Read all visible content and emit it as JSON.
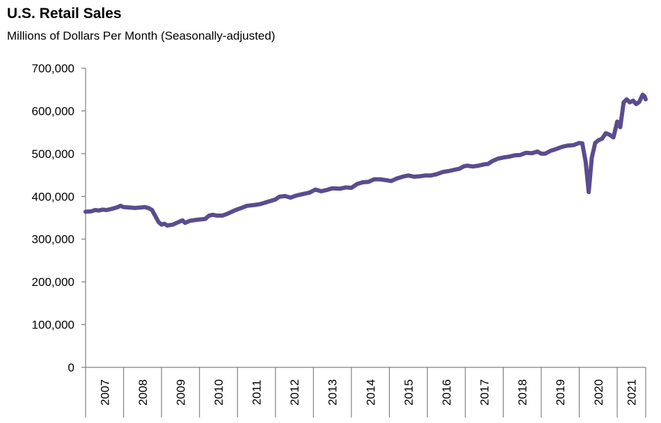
{
  "chart_data": {
    "type": "line",
    "title": "U.S. Retail Sales",
    "subtitle": "Millions of Dollars Per Month (Seasonally-adjusted)",
    "xlabel": "",
    "ylabel": "",
    "ylim": [
      0,
      700000
    ],
    "yticks": [
      0,
      100000,
      200000,
      300000,
      400000,
      500000,
      600000,
      700000
    ],
    "ytick_labels": [
      "0",
      "100,000",
      "200,000",
      "300,000",
      "400,000",
      "500,000",
      "600,000",
      "700,000"
    ],
    "xlim": [
      2007,
      2021.75
    ],
    "x_tick_labels": [
      "2007",
      "2008",
      "2009",
      "2010",
      "2011",
      "2012",
      "2013",
      "2014",
      "2015",
      "2016",
      "2017",
      "2018",
      "2019",
      "2020",
      "2021"
    ],
    "grid": false,
    "line_color": "#5b4c8e",
    "series": [
      {
        "name": "U.S. Retail Sales",
        "points": [
          [
            2007.0,
            364000
          ],
          [
            2007.15,
            365000
          ],
          [
            2007.25,
            368000
          ],
          [
            2007.35,
            367000
          ],
          [
            2007.45,
            369000
          ],
          [
            2007.55,
            368000
          ],
          [
            2007.7,
            371000
          ],
          [
            2007.85,
            375000
          ],
          [
            2007.92,
            378000
          ],
          [
            2008.0,
            375000
          ],
          [
            2008.15,
            374000
          ],
          [
            2008.3,
            373000
          ],
          [
            2008.45,
            374000
          ],
          [
            2008.55,
            375000
          ],
          [
            2008.65,
            373000
          ],
          [
            2008.75,
            368000
          ],
          [
            2008.83,
            355000
          ],
          [
            2008.92,
            340000
          ],
          [
            2009.0,
            334000
          ],
          [
            2009.08,
            336000
          ],
          [
            2009.15,
            332000
          ],
          [
            2009.3,
            334000
          ],
          [
            2009.45,
            340000
          ],
          [
            2009.55,
            344000
          ],
          [
            2009.62,
            338000
          ],
          [
            2009.75,
            343000
          ],
          [
            2009.9,
            345000
          ],
          [
            2010.0,
            346000
          ],
          [
            2010.15,
            347000
          ],
          [
            2010.25,
            355000
          ],
          [
            2010.35,
            357000
          ],
          [
            2010.45,
            355000
          ],
          [
            2010.6,
            355000
          ],
          [
            2010.75,
            360000
          ],
          [
            2010.92,
            367000
          ],
          [
            2011.1,
            373000
          ],
          [
            2011.25,
            378000
          ],
          [
            2011.45,
            380000
          ],
          [
            2011.6,
            382000
          ],
          [
            2011.75,
            386000
          ],
          [
            2011.9,
            390000
          ],
          [
            2012.0,
            393000
          ],
          [
            2012.1,
            399000
          ],
          [
            2012.25,
            401000
          ],
          [
            2012.4,
            397000
          ],
          [
            2012.55,
            402000
          ],
          [
            2012.7,
            405000
          ],
          [
            2012.9,
            409000
          ],
          [
            2013.05,
            416000
          ],
          [
            2013.2,
            412000
          ],
          [
            2013.35,
            415000
          ],
          [
            2013.5,
            419000
          ],
          [
            2013.7,
            418000
          ],
          [
            2013.85,
            421000
          ],
          [
            2014.0,
            420000
          ],
          [
            2014.15,
            429000
          ],
          [
            2014.3,
            433000
          ],
          [
            2014.45,
            434000
          ],
          [
            2014.6,
            440000
          ],
          [
            2014.75,
            440000
          ],
          [
            2014.9,
            438000
          ],
          [
            2015.05,
            436000
          ],
          [
            2015.2,
            442000
          ],
          [
            2015.35,
            446000
          ],
          [
            2015.5,
            449000
          ],
          [
            2015.65,
            446000
          ],
          [
            2015.8,
            447000
          ],
          [
            2015.95,
            449000
          ],
          [
            2016.1,
            449000
          ],
          [
            2016.25,
            452000
          ],
          [
            2016.4,
            457000
          ],
          [
            2016.55,
            459000
          ],
          [
            2016.7,
            462000
          ],
          [
            2016.85,
            465000
          ],
          [
            2016.95,
            470000
          ],
          [
            2017.05,
            472000
          ],
          [
            2017.2,
            470000
          ],
          [
            2017.35,
            472000
          ],
          [
            2017.5,
            475000
          ],
          [
            2017.6,
            476000
          ],
          [
            2017.7,
            482000
          ],
          [
            2017.85,
            488000
          ],
          [
            2018.0,
            491000
          ],
          [
            2018.15,
            493000
          ],
          [
            2018.3,
            496000
          ],
          [
            2018.45,
            497000
          ],
          [
            2018.6,
            502000
          ],
          [
            2018.75,
            501000
          ],
          [
            2018.9,
            505000
          ],
          [
            2019.0,
            500000
          ],
          [
            2019.1,
            500000
          ],
          [
            2019.25,
            507000
          ],
          [
            2019.4,
            511000
          ],
          [
            2019.55,
            516000
          ],
          [
            2019.7,
            519000
          ],
          [
            2019.85,
            520000
          ],
          [
            2020.0,
            525000
          ],
          [
            2020.08,
            524000
          ],
          [
            2020.17,
            480000
          ],
          [
            2020.25,
            410000
          ],
          [
            2020.33,
            490000
          ],
          [
            2020.42,
            525000
          ],
          [
            2020.5,
            531000
          ],
          [
            2020.6,
            535000
          ],
          [
            2020.7,
            548000
          ],
          [
            2020.8,
            544000
          ],
          [
            2020.9,
            538000
          ],
          [
            2021.0,
            575000
          ],
          [
            2021.08,
            562000
          ],
          [
            2021.17,
            620000
          ],
          [
            2021.25,
            627000
          ],
          [
            2021.33,
            620000
          ],
          [
            2021.42,
            624000
          ],
          [
            2021.5,
            616000
          ],
          [
            2021.58,
            621000
          ],
          [
            2021.67,
            638000
          ],
          [
            2021.72,
            634000
          ],
          [
            2021.75,
            627000
          ]
        ]
      }
    ]
  }
}
